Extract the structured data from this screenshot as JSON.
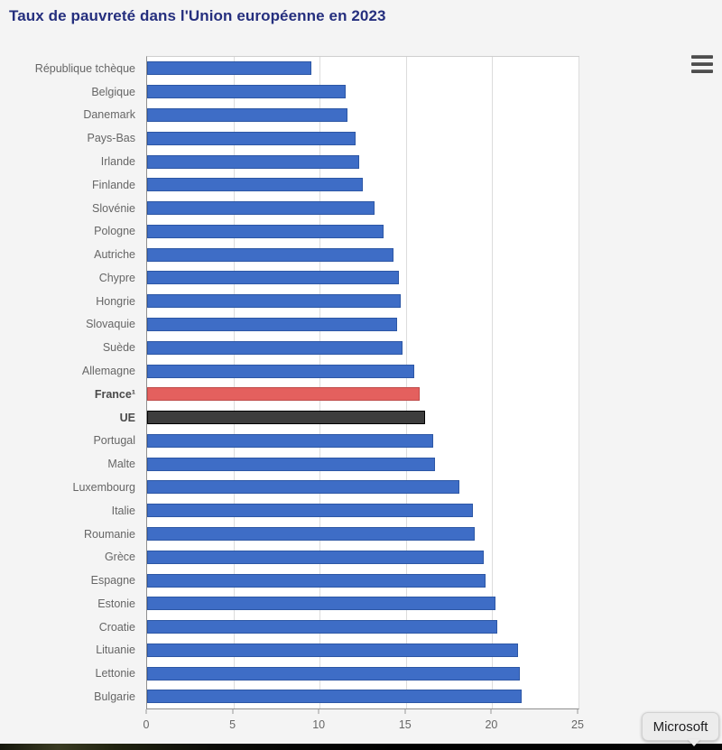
{
  "page": {
    "title": "Taux de pauvreté dans l'Union européenne en 2023",
    "attribution_tooltip": "Microsoft"
  },
  "colors": {
    "title_text": "#252f7e",
    "bar_default": "#3e6dc6",
    "bar_france": "#e4605e",
    "bar_ue": "#3d3d3d",
    "axis_text": "#666666"
  },
  "chart_data": {
    "type": "bar",
    "orientation": "horizontal",
    "title": "Taux de pauvreté dans l'Union européenne en 2023",
    "xlabel": "",
    "ylabel": "",
    "unit": "%",
    "xlim": [
      0,
      25
    ],
    "x_ticks": [
      0,
      5,
      10,
      15,
      20,
      25
    ],
    "grid": true,
    "legend": "none",
    "categories": [
      "République tchèque",
      "Belgique",
      "Danemark",
      "Pays-Bas",
      "Irlande",
      "Finlande",
      "Slovénie",
      "Pologne",
      "Autriche",
      "Chypre",
      "Hongrie",
      "Slovaquie",
      "Suède",
      "Allemagne",
      "France¹",
      "UE",
      "Portugal",
      "Malte",
      "Luxembourg",
      "Italie",
      "Roumanie",
      "Grèce",
      "Espagne",
      "Estonie",
      "Croatie",
      "Lituanie",
      "Lettonie",
      "Bulgarie"
    ],
    "values": [
      9.5,
      11.5,
      11.6,
      12.1,
      12.3,
      12.5,
      13.2,
      13.7,
      14.3,
      14.6,
      14.7,
      14.5,
      14.8,
      15.5,
      15.8,
      16.1,
      16.6,
      16.7,
      18.1,
      18.9,
      19.0,
      19.5,
      19.6,
      20.2,
      20.3,
      21.5,
      21.6,
      21.7
    ],
    "styles": [
      "default",
      "default",
      "default",
      "default",
      "default",
      "default",
      "default",
      "default",
      "default",
      "default",
      "default",
      "default",
      "default",
      "default",
      "france",
      "ue",
      "default",
      "default",
      "default",
      "default",
      "default",
      "default",
      "default",
      "default",
      "default",
      "default",
      "default",
      "default"
    ],
    "colors": {
      "default": "#3e6dc6",
      "france": "#e4605e",
      "ue": "#3d3d3d"
    },
    "border_colors": {
      "default": "#2d57a5",
      "france": "#bf4a49",
      "ue": "#000000"
    }
  }
}
